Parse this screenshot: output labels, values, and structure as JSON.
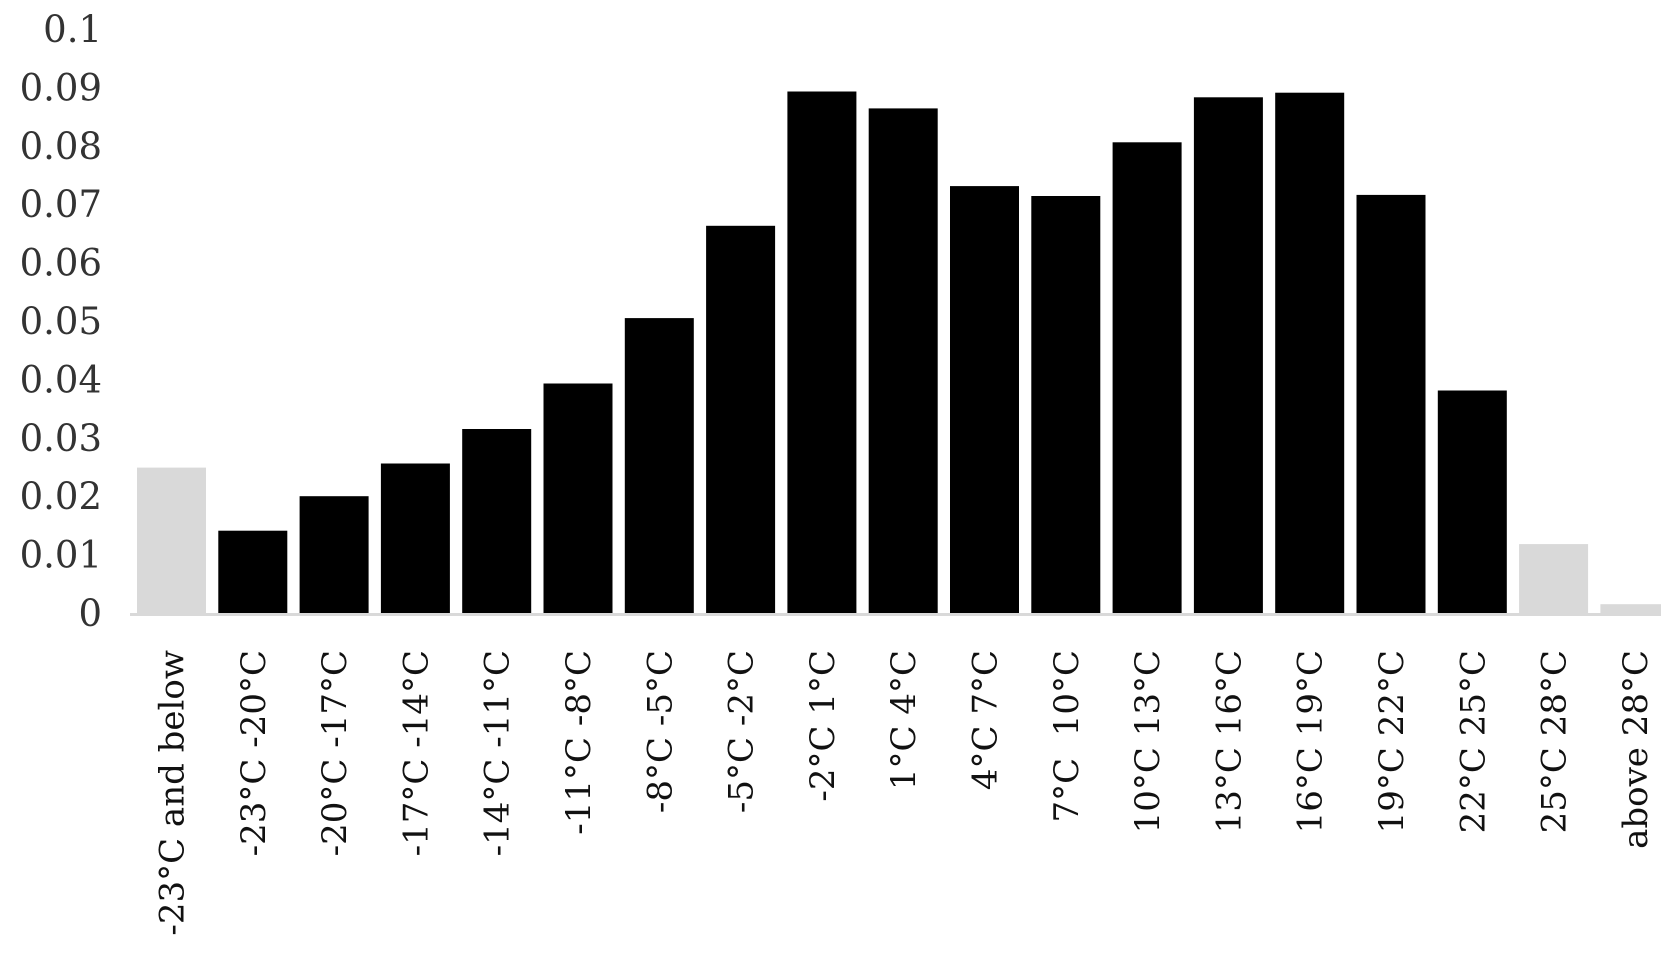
{
  "chart_data": {
    "type": "bar",
    "title": "",
    "xlabel": "",
    "ylabel": "",
    "ylim": [
      0,
      0.1
    ],
    "yticks": [
      0,
      0.01,
      0.02,
      0.03,
      0.04,
      0.05,
      0.06,
      0.07,
      0.08,
      0.09,
      0.1
    ],
    "ytick_labels": [
      "0",
      "0.01",
      "0.02",
      "0.03",
      "0.04",
      "0.05",
      "0.06",
      "0.07",
      "0.08",
      "0.09",
      "0.1"
    ],
    "grid": false,
    "legend": "none",
    "categories": [
      "-23°C and below",
      "-23°C -20°C",
      "-20°C -17°C",
      "-17°C -14°C",
      "-14°C -11°C",
      "-11°C -8°C",
      "-8°C -5°C",
      "-5°C -2°C",
      "-2°C 1°C",
      "1°C 4°C",
      "4°C 7°C",
      "7°C  10°C",
      "10°C 13°C",
      "13°C 16°C",
      "16°C 19°C",
      "19°C 22°C",
      "22°C 25°C",
      "25°C 28°C",
      "above 28°C"
    ],
    "values": [
      0.0249,
      0.0141,
      0.02,
      0.0256,
      0.0315,
      0.0393,
      0.0505,
      0.0663,
      0.0893,
      0.0864,
      0.0731,
      0.0714,
      0.0806,
      0.0883,
      0.0891,
      0.0716,
      0.0381,
      0.0118,
      0.0015
    ],
    "bar_colors": [
      "#d9d9d9",
      "#000000",
      "#000000",
      "#000000",
      "#000000",
      "#000000",
      "#000000",
      "#000000",
      "#000000",
      "#000000",
      "#000000",
      "#000000",
      "#000000",
      "#000000",
      "#000000",
      "#000000",
      "#000000",
      "#d9d9d9",
      "#d9d9d9"
    ],
    "axis_color": "#d9d9d9"
  }
}
